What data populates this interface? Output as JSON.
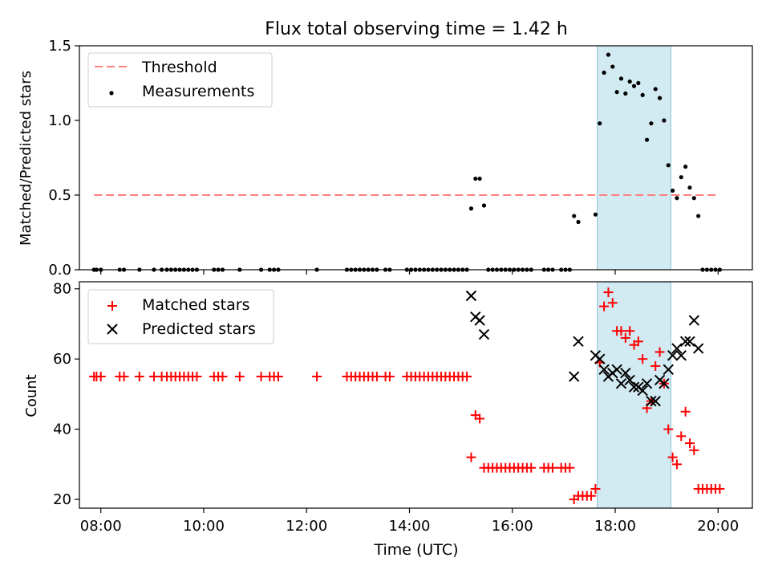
{
  "figure": {
    "title": "Flux total observing time = 1.42 h",
    "xlabel": "Time (UTC)",
    "x_ticks": [
      "08:00",
      "10:00",
      "12:00",
      "14:00",
      "16:00",
      "18:00",
      "20:00"
    ],
    "colors": {
      "shade": "#add8e6",
      "threshold": "#ff7f7f",
      "matched": "#ff0000",
      "predicted": "#000000",
      "measurement": "#000000"
    }
  },
  "chart_data": [
    {
      "type": "scatter",
      "panel": "top",
      "title": "Flux total observing time = 1.42 h",
      "ylabel": "Matched/Predicted stars",
      "xlabel": "",
      "xlim": [
        "07:35",
        "20:40"
      ],
      "ylim": [
        0,
        1.5
      ],
      "y_ticks": [
        "0.0",
        "0.5",
        "1.0",
        "1.5"
      ],
      "shaded_span": {
        "x": [
          "17:39",
          "19:05"
        ]
      },
      "legend": {
        "position": "top-left",
        "entries": [
          "Threshold",
          "Measurements"
        ]
      },
      "threshold": {
        "name": "Threshold",
        "value": 0.5,
        "x": [
          "07:52",
          "19:58"
        ]
      },
      "series": [
        {
          "name": "Measurements",
          "points": [
            [
              "07:52",
              0
            ],
            [
              "07:55",
              0
            ],
            [
              "08:00",
              0
            ],
            [
              "08:22",
              0
            ],
            [
              "08:27",
              0
            ],
            [
              "08:45",
              0
            ],
            [
              "09:02",
              0
            ],
            [
              "09:11",
              0
            ],
            [
              "09:17",
              0
            ],
            [
              "09:22",
              0
            ],
            [
              "09:27",
              0
            ],
            [
              "09:32",
              0
            ],
            [
              "09:37",
              0
            ],
            [
              "09:42",
              0
            ],
            [
              "09:47",
              0
            ],
            [
              "09:52",
              0
            ],
            [
              "10:12",
              0
            ],
            [
              "10:17",
              0
            ],
            [
              "10:22",
              0
            ],
            [
              "10:42",
              0
            ],
            [
              "11:07",
              0
            ],
            [
              "11:17",
              0
            ],
            [
              "11:22",
              0
            ],
            [
              "11:27",
              0
            ],
            [
              "12:12",
              0
            ],
            [
              "12:47",
              0
            ],
            [
              "12:52",
              0
            ],
            [
              "12:57",
              0
            ],
            [
              "13:02",
              0
            ],
            [
              "13:07",
              0
            ],
            [
              "13:12",
              0
            ],
            [
              "13:17",
              0
            ],
            [
              "13:22",
              0
            ],
            [
              "13:32",
              0
            ],
            [
              "13:37",
              0
            ],
            [
              "13:57",
              0
            ],
            [
              "14:02",
              0
            ],
            [
              "14:07",
              0
            ],
            [
              "14:12",
              0
            ],
            [
              "14:17",
              0
            ],
            [
              "14:22",
              0
            ],
            [
              "14:27",
              0
            ],
            [
              "14:32",
              0
            ],
            [
              "14:37",
              0
            ],
            [
              "14:42",
              0
            ],
            [
              "14:47",
              0
            ],
            [
              "14:52",
              0
            ],
            [
              "14:57",
              0
            ],
            [
              "15:02",
              0
            ],
            [
              "15:07",
              0
            ],
            [
              "15:12",
              0.41
            ],
            [
              "15:17",
              0.61
            ],
            [
              "15:22",
              0.61
            ],
            [
              "15:27",
              0.43
            ],
            [
              "15:32",
              0
            ],
            [
              "15:37",
              0
            ],
            [
              "15:42",
              0
            ],
            [
              "15:47",
              0
            ],
            [
              "15:52",
              0
            ],
            [
              "15:57",
              0
            ],
            [
              "16:02",
              0
            ],
            [
              "16:07",
              0
            ],
            [
              "16:12",
              0
            ],
            [
              "16:17",
              0
            ],
            [
              "16:22",
              0
            ],
            [
              "16:37",
              0
            ],
            [
              "16:42",
              0
            ],
            [
              "16:47",
              0
            ],
            [
              "16:57",
              0
            ],
            [
              "17:02",
              0
            ],
            [
              "17:07",
              0
            ],
            [
              "17:12",
              0.36
            ],
            [
              "17:17",
              0.32
            ],
            [
              "17:37",
              0.37
            ],
            [
              "17:42",
              0.98
            ],
            [
              "17:47",
              1.32
            ],
            [
              "17:52",
              1.44
            ],
            [
              "17:57",
              1.36
            ],
            [
              "18:02",
              1.19
            ],
            [
              "18:07",
              1.28
            ],
            [
              "18:12",
              1.18
            ],
            [
              "18:17",
              1.26
            ],
            [
              "18:22",
              1.23
            ],
            [
              "18:27",
              1.25
            ],
            [
              "18:32",
              1.17
            ],
            [
              "18:37",
              0.87
            ],
            [
              "18:42",
              0.98
            ],
            [
              "18:47",
              1.21
            ],
            [
              "18:52",
              1.15
            ],
            [
              "18:57",
              1.0
            ],
            [
              "19:02",
              0.7
            ],
            [
              "19:07",
              0.53
            ],
            [
              "19:12",
              0.48
            ],
            [
              "19:17",
              0.62
            ],
            [
              "19:22",
              0.69
            ],
            [
              "19:27",
              0.55
            ],
            [
              "19:32",
              0.48
            ],
            [
              "19:37",
              0.36
            ],
            [
              "19:42",
              0
            ],
            [
              "19:47",
              0
            ],
            [
              "19:52",
              0
            ],
            [
              "19:57",
              0
            ],
            [
              "20:02",
              0
            ]
          ]
        }
      ]
    },
    {
      "type": "scatter",
      "panel": "bottom",
      "ylabel": "Count",
      "xlabel": "Time (UTC)",
      "xlim": [
        "07:35",
        "20:40"
      ],
      "ylim": [
        17.5,
        82
      ],
      "y_ticks": [
        "20",
        "40",
        "60",
        "80"
      ],
      "shaded_span": {
        "x": [
          "17:39",
          "19:05"
        ]
      },
      "legend": {
        "position": "top-left",
        "entries": [
          "Matched stars",
          "Predicted stars"
        ]
      },
      "series": [
        {
          "name": "Matched stars",
          "marker": "+",
          "points": [
            [
              "07:52",
              55
            ],
            [
              "07:55",
              55
            ],
            [
              "08:00",
              55
            ],
            [
              "08:22",
              55
            ],
            [
              "08:27",
              55
            ],
            [
              "08:45",
              55
            ],
            [
              "09:02",
              55
            ],
            [
              "09:11",
              55
            ],
            [
              "09:17",
              55
            ],
            [
              "09:22",
              55
            ],
            [
              "09:27",
              55
            ],
            [
              "09:32",
              55
            ],
            [
              "09:37",
              55
            ],
            [
              "09:42",
              55
            ],
            [
              "09:47",
              55
            ],
            [
              "09:52",
              55
            ],
            [
              "10:12",
              55
            ],
            [
              "10:17",
              55
            ],
            [
              "10:22",
              55
            ],
            [
              "10:42",
              55
            ],
            [
              "11:07",
              55
            ],
            [
              "11:17",
              55
            ],
            [
              "11:22",
              55
            ],
            [
              "11:27",
              55
            ],
            [
              "12:12",
              55
            ],
            [
              "12:47",
              55
            ],
            [
              "12:52",
              55
            ],
            [
              "12:57",
              55
            ],
            [
              "13:02",
              55
            ],
            [
              "13:07",
              55
            ],
            [
              "13:12",
              55
            ],
            [
              "13:17",
              55
            ],
            [
              "13:22",
              55
            ],
            [
              "13:32",
              55
            ],
            [
              "13:37",
              55
            ],
            [
              "13:57",
              55
            ],
            [
              "14:02",
              55
            ],
            [
              "14:07",
              55
            ],
            [
              "14:12",
              55
            ],
            [
              "14:17",
              55
            ],
            [
              "14:22",
              55
            ],
            [
              "14:27",
              55
            ],
            [
              "14:32",
              55
            ],
            [
              "14:37",
              55
            ],
            [
              "14:42",
              55
            ],
            [
              "14:47",
              55
            ],
            [
              "14:52",
              55
            ],
            [
              "14:57",
              55
            ],
            [
              "15:02",
              55
            ],
            [
              "15:07",
              55
            ],
            [
              "15:12",
              32
            ],
            [
              "15:17",
              44
            ],
            [
              "15:22",
              43
            ],
            [
              "15:27",
              29
            ],
            [
              "15:32",
              29
            ],
            [
              "15:37",
              29
            ],
            [
              "15:42",
              29
            ],
            [
              "15:47",
              29
            ],
            [
              "15:52",
              29
            ],
            [
              "15:57",
              29
            ],
            [
              "16:02",
              29
            ],
            [
              "16:07",
              29
            ],
            [
              "16:12",
              29
            ],
            [
              "16:17",
              29
            ],
            [
              "16:22",
              29
            ],
            [
              "16:37",
              29
            ],
            [
              "16:42",
              29
            ],
            [
              "16:47",
              29
            ],
            [
              "16:57",
              29
            ],
            [
              "17:02",
              29
            ],
            [
              "17:07",
              29
            ],
            [
              "17:12",
              20
            ],
            [
              "17:17",
              21
            ],
            [
              "17:22",
              21
            ],
            [
              "17:27",
              21
            ],
            [
              "17:32",
              21
            ],
            [
              "17:37",
              23
            ],
            [
              "17:42",
              59
            ],
            [
              "17:47",
              75
            ],
            [
              "17:52",
              79
            ],
            [
              "17:57",
              76
            ],
            [
              "18:02",
              68
            ],
            [
              "18:07",
              68
            ],
            [
              "18:12",
              66
            ],
            [
              "18:17",
              68
            ],
            [
              "18:22",
              64
            ],
            [
              "18:27",
              65
            ],
            [
              "18:32",
              60
            ],
            [
              "18:37",
              46
            ],
            [
              "18:42",
              48
            ],
            [
              "18:47",
              58
            ],
            [
              "18:52",
              62
            ],
            [
              "18:57",
              53
            ],
            [
              "19:02",
              40
            ],
            [
              "19:07",
              32
            ],
            [
              "19:12",
              30
            ],
            [
              "19:17",
              38
            ],
            [
              "19:22",
              45
            ],
            [
              "19:27",
              36
            ],
            [
              "19:32",
              34
            ],
            [
              "19:37",
              23
            ],
            [
              "19:42",
              23
            ],
            [
              "19:47",
              23
            ],
            [
              "19:52",
              23
            ],
            [
              "19:57",
              23
            ],
            [
              "20:02",
              23
            ]
          ]
        },
        {
          "name": "Predicted stars",
          "marker": "x",
          "points": [
            [
              "15:12",
              78
            ],
            [
              "15:17",
              72
            ],
            [
              "15:22",
              71
            ],
            [
              "15:27",
              67
            ],
            [
              "17:12",
              55
            ],
            [
              "17:17",
              65
            ],
            [
              "17:37",
              61
            ],
            [
              "17:42",
              60
            ],
            [
              "17:47",
              57
            ],
            [
              "17:52",
              55
            ],
            [
              "17:57",
              56
            ],
            [
              "18:02",
              57
            ],
            [
              "18:07",
              53
            ],
            [
              "18:12",
              56
            ],
            [
              "18:17",
              54
            ],
            [
              "18:22",
              52
            ],
            [
              "18:27",
              52
            ],
            [
              "18:32",
              51
            ],
            [
              "18:37",
              53
            ],
            [
              "18:42",
              48
            ],
            [
              "18:47",
              48
            ],
            [
              "18:52",
              54
            ],
            [
              "18:57",
              53
            ],
            [
              "19:02",
              57
            ],
            [
              "19:07",
              61
            ],
            [
              "19:12",
              63
            ],
            [
              "19:17",
              61
            ],
            [
              "19:22",
              65
            ],
            [
              "19:27",
              65
            ],
            [
              "19:32",
              71
            ],
            [
              "19:37",
              63
            ]
          ]
        }
      ]
    }
  ]
}
